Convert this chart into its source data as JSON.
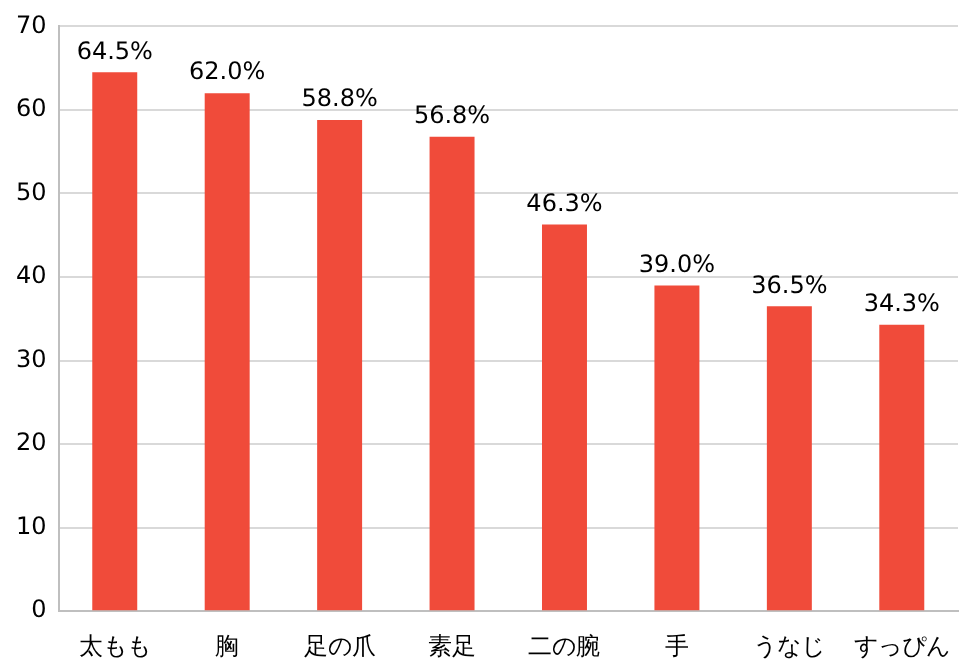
{
  "chart_data": {
    "type": "bar",
    "categories": [
      "太もも",
      "胸",
      "足の爪",
      "素足",
      "二の腕",
      "手",
      "うなじ",
      "すっぴん"
    ],
    "values": [
      64.5,
      62.0,
      58.8,
      56.8,
      46.3,
      39.0,
      36.5,
      34.3
    ],
    "value_labels": [
      "64.5%",
      "62.0%",
      "58.8%",
      "56.8%",
      "46.3%",
      "39.0%",
      "36.5%",
      "34.3%"
    ],
    "color": "#f04b3a",
    "ylim": [
      0,
      70
    ],
    "yticks": [
      0,
      10,
      20,
      30,
      40,
      50,
      60,
      70
    ],
    "grid": "y"
  }
}
